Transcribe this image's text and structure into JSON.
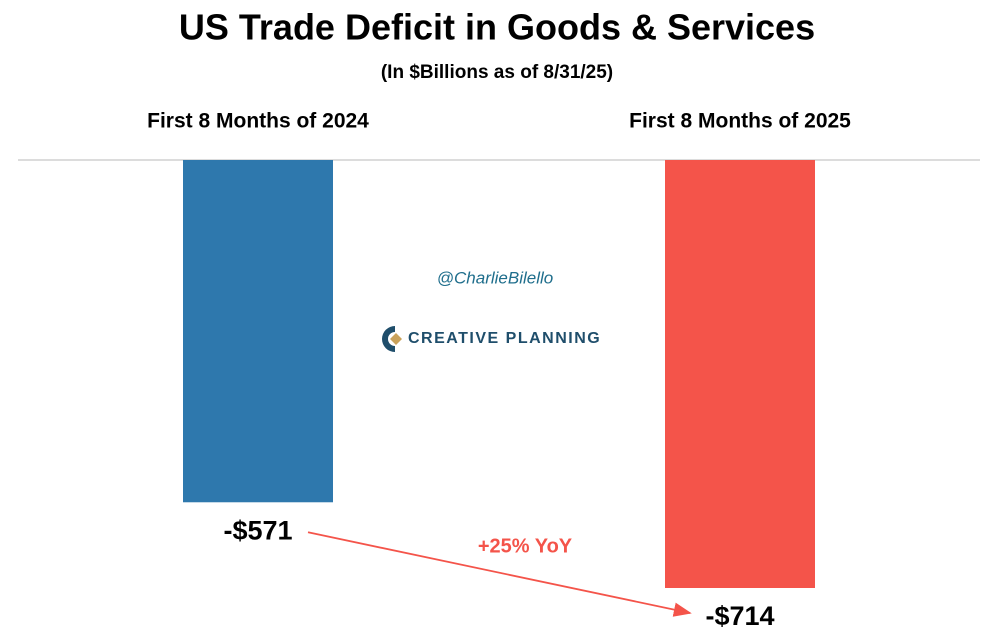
{
  "chart_data": {
    "type": "bar",
    "title": "US Trade Deficit in Goods & Services",
    "subtitle": "(In $Billions as of 8/31/25)",
    "categories": [
      "First 8 Months of 2024",
      "First 8 Months of 2025"
    ],
    "values": [
      -571,
      -714
    ],
    "value_labels": [
      "-$571",
      "-$714"
    ],
    "colors": [
      "#2e78ad",
      "#f4544a"
    ],
    "annotation": "+25% YoY",
    "annotation_color": "#f4544a",
    "watermark": "@CharlieBilello",
    "brand": "CREATIVE PLANNING"
  }
}
